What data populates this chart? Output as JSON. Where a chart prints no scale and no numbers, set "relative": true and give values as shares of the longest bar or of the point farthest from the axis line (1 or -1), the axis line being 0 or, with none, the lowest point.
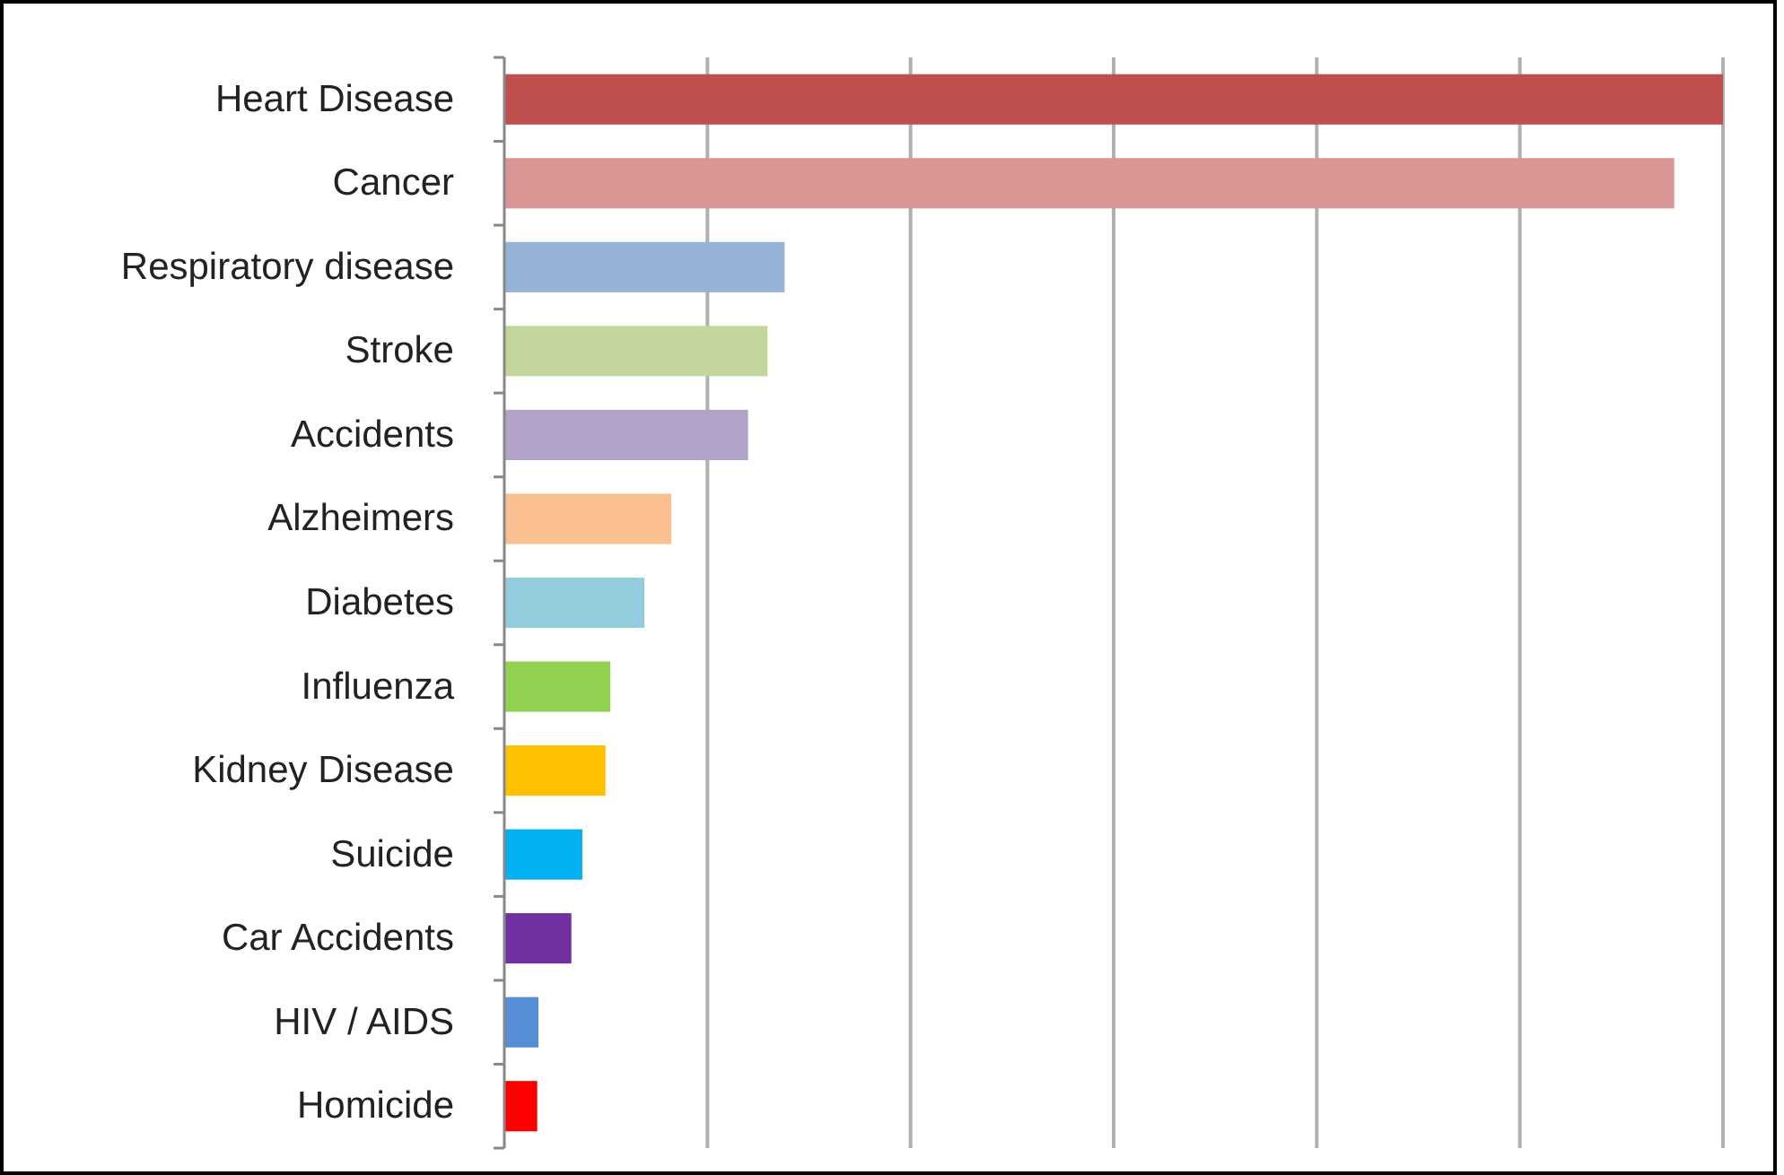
{
  "chart_data": {
    "type": "bar",
    "orientation": "horizontal",
    "relative": true,
    "grid": true,
    "categories": [
      "Heart Disease",
      "Cancer",
      "Respiratory disease",
      "Stroke",
      "Accidents",
      "Alzheimers",
      "Diabetes",
      "Influenza",
      "Kidney Disease",
      "Suicide",
      "Car Accidents",
      "HIV / AIDS",
      "Homicide"
    ],
    "values": [
      1,
      0.96,
      0.23,
      0.216,
      0.2,
      0.137,
      0.115,
      0.087,
      0.083,
      0.064,
      0.055,
      0.028,
      0.027
    ],
    "colors": [
      "#c0504d",
      "#d99694",
      "#95b3d7",
      "#c3d69b",
      "#b3a2c7",
      "#fac090",
      "#93cddd",
      "#92d050",
      "#ffc000",
      "#00b0f0",
      "#7030a0",
      "#558ed5",
      "#ff0000"
    ]
  }
}
